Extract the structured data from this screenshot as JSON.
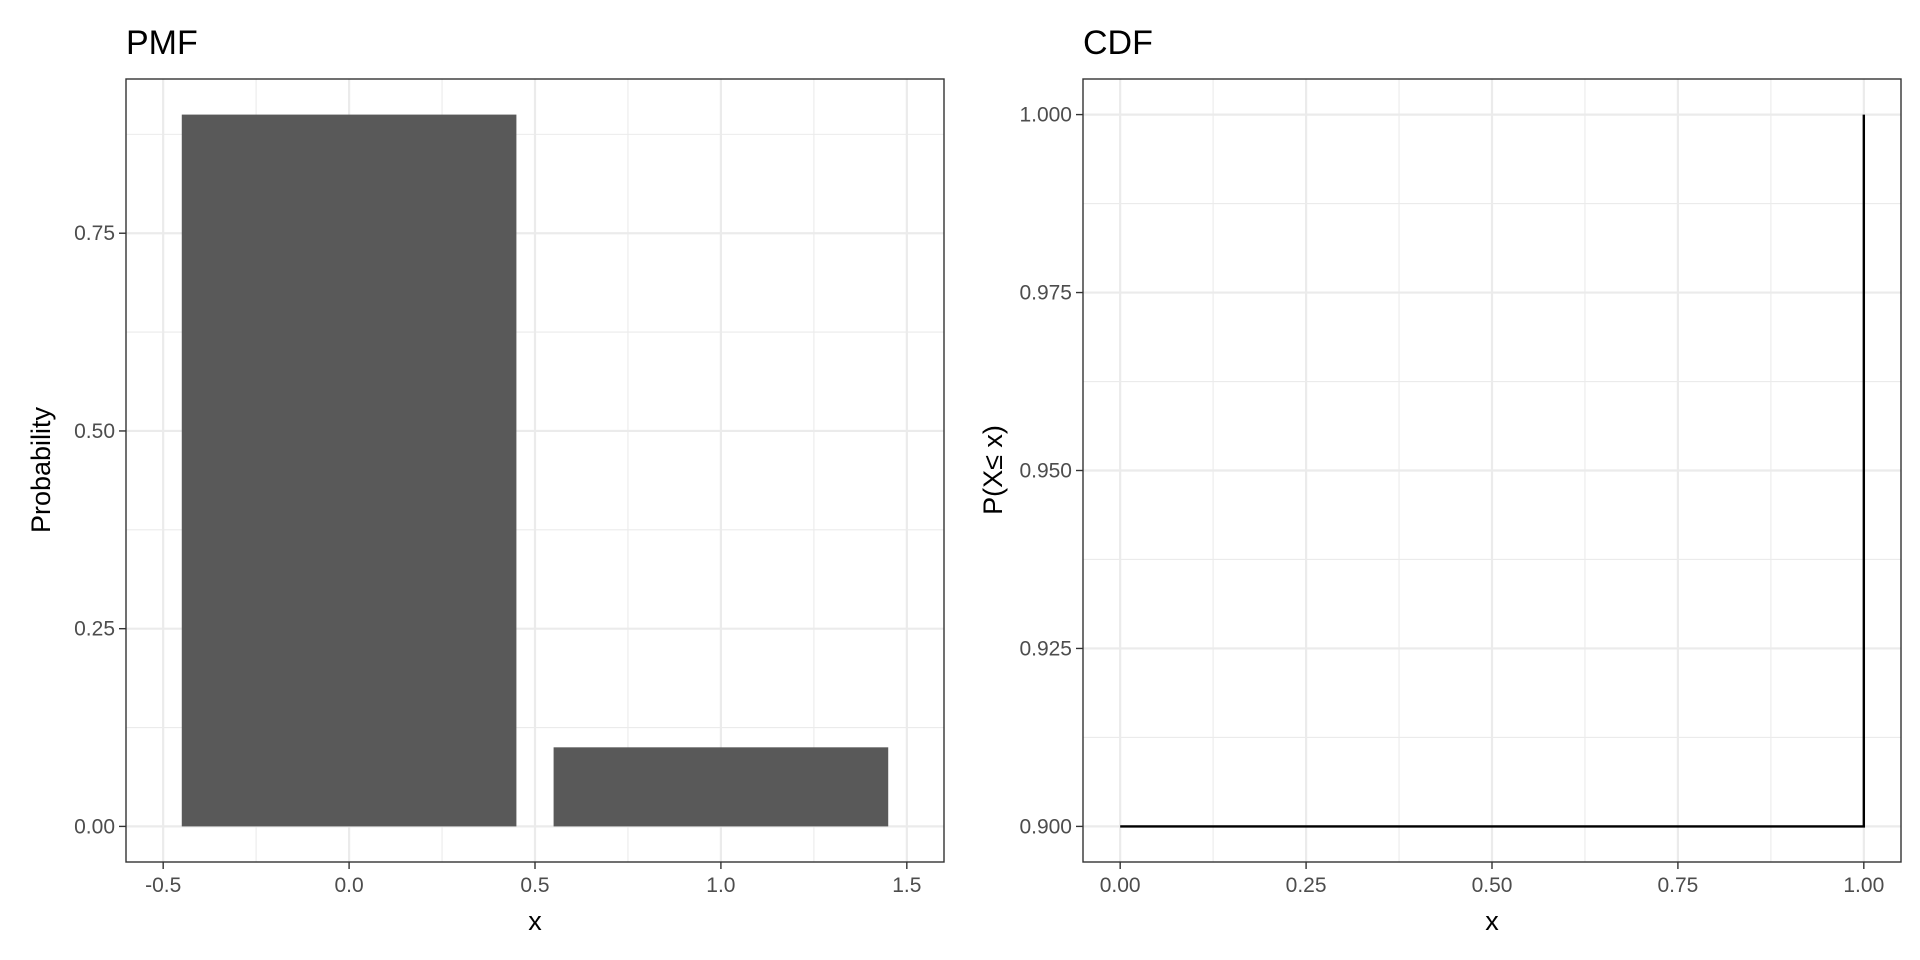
{
  "chart_data": [
    {
      "type": "bar",
      "title": "PMF",
      "xlabel": "x",
      "ylabel": "Probability",
      "x": [
        0,
        1
      ],
      "values": [
        0.9,
        0.1
      ],
      "bar_width": 0.9,
      "xlim": [
        -0.5,
        1.5
      ],
      "ylim": [
        0,
        0.9
      ],
      "xticks": [
        -0.5,
        0.0,
        0.5,
        1.0,
        1.5
      ],
      "xtick_labels": [
        "-0.5",
        "0.0",
        "0.5",
        "1.0",
        "1.5"
      ],
      "yticks": [
        0.0,
        0.25,
        0.5,
        0.75
      ],
      "ytick_labels": [
        "0.00",
        "0.25",
        "0.50",
        "0.75"
      ],
      "grid": true,
      "bar_color": "#595959"
    },
    {
      "type": "line",
      "step": true,
      "title": "CDF",
      "xlabel": "x",
      "ylabel": "P(X≤ x)",
      "series": [
        {
          "x": [
            0,
            1,
            1
          ],
          "values": [
            0.9,
            0.9,
            1.0
          ]
        }
      ],
      "xlim": [
        0,
        1
      ],
      "ylim": [
        0.9,
        1.0
      ],
      "xticks": [
        0.0,
        0.25,
        0.5,
        0.75,
        1.0
      ],
      "xtick_labels": [
        "0.00",
        "0.25",
        "0.50",
        "0.75",
        "1.00"
      ],
      "yticks": [
        0.9,
        0.925,
        0.95,
        0.975,
        1.0
      ],
      "ytick_labels": [
        "0.900",
        "0.925",
        "0.950",
        "0.975",
        "1.000"
      ],
      "grid": true,
      "line_color": "#000000"
    }
  ]
}
